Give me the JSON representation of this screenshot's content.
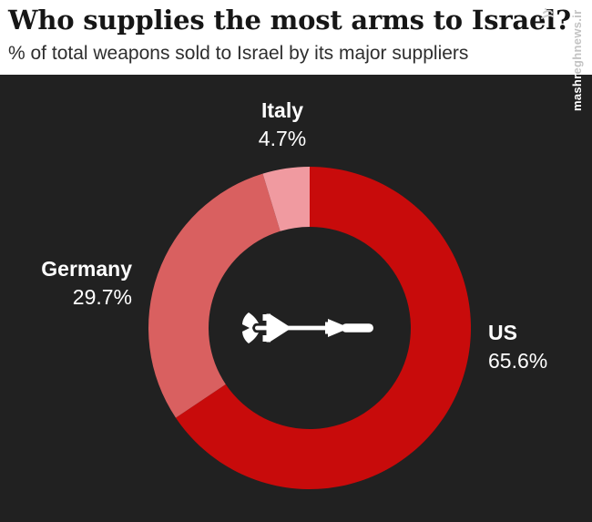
{
  "header": {
    "title": "Who supplies the most arms to Israel?",
    "subtitle": "% of total weapons sold to Israel by its major suppliers"
  },
  "watermark": {
    "bold_part": "mashr",
    "light_part": "eghnews.ir"
  },
  "icons": {
    "center": "missile-icon",
    "logo": "mashregh-logo-icon"
  },
  "chart_data": {
    "type": "pie",
    "variant": "donut",
    "title": "Who supplies the most arms to Israel?",
    "subtitle": "% of total weapons sold to Israel by its major suppliers",
    "categories": [
      "US",
      "Germany",
      "Italy"
    ],
    "values": [
      65.6,
      29.7,
      4.7
    ],
    "unit": "%",
    "colors": [
      "#c80b0b",
      "#d96060",
      "#f09aa0"
    ],
    "start_angle_deg": 0,
    "direction": "clockwise",
    "background": "#212121",
    "legend_position": "around-donut",
    "labels": [
      {
        "name": "US",
        "value_label": "65.6%"
      },
      {
        "name": "Germany",
        "value_label": "29.7%"
      },
      {
        "name": "Italy",
        "value_label": "4.7%"
      }
    ]
  }
}
